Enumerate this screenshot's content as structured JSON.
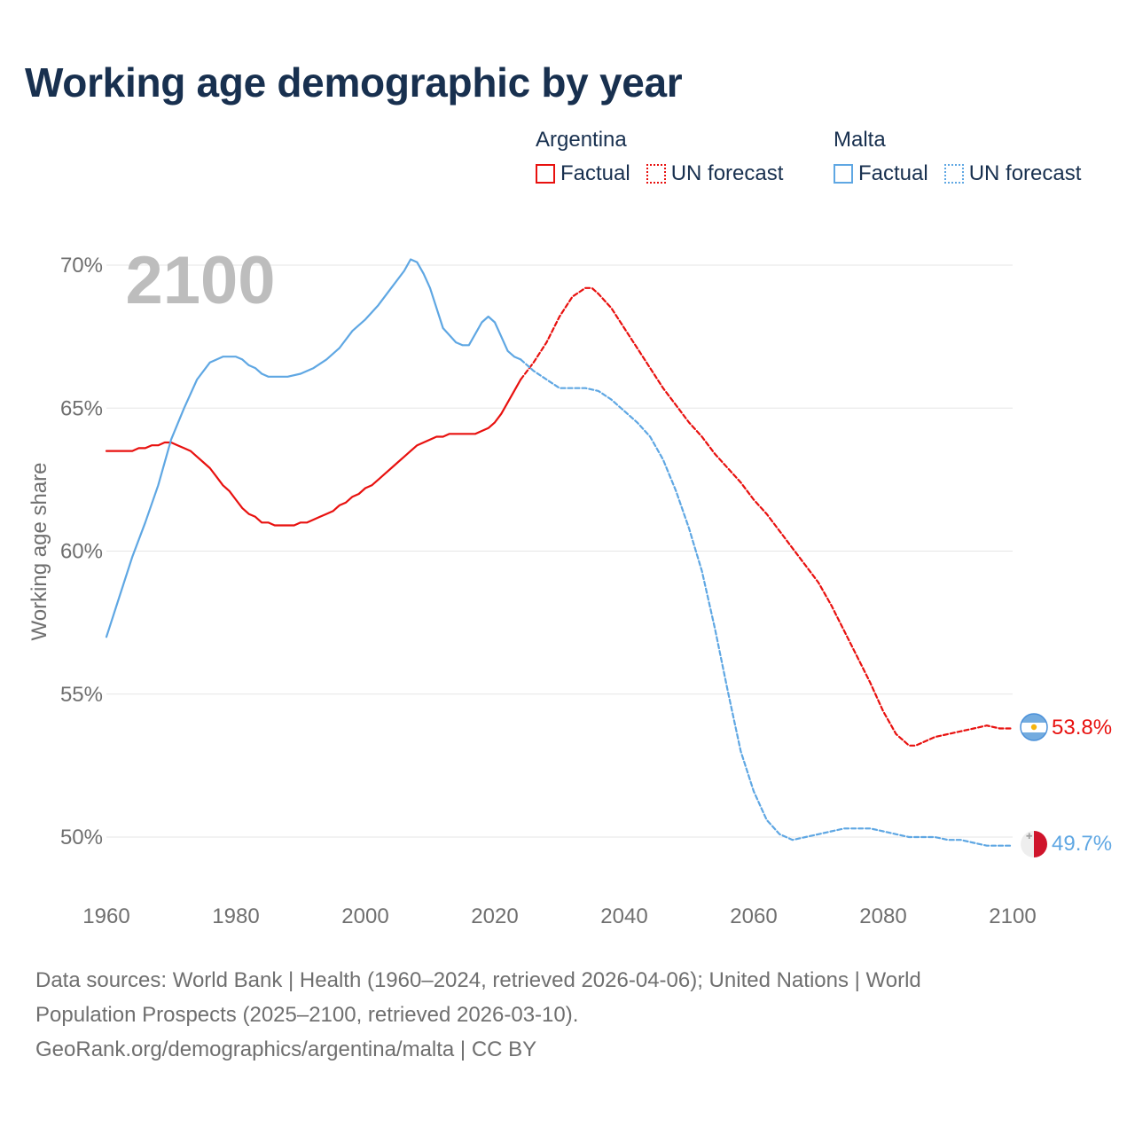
{
  "title": "Working age demographic by year",
  "legend": {
    "groups": [
      {
        "name": "Argentina",
        "color": "#e8110f",
        "factual_label": "Factual",
        "forecast_label": "UN forecast"
      },
      {
        "name": "Malta",
        "color": "#5fa7e3",
        "factual_label": "Factual",
        "forecast_label": "UN forecast"
      }
    ]
  },
  "year_overlay": "2100",
  "end_labels": {
    "argentina": "53.8%",
    "malta": "49.7%"
  },
  "footer": {
    "line1": "Data sources: World Bank | Health (1960–2024, retrieved 2026-04-06); United Nations | World",
    "line2": "Population Prospects (2025–2100, retrieved 2026-03-10).",
    "line3": "GeoRank.org/demographics/argentina/malta | CC BY"
  },
  "chart_data": {
    "type": "line",
    "title": "Working age demographic by year",
    "xlabel": "",
    "ylabel": "Working age share",
    "xlim": [
      1960,
      2100
    ],
    "ylim": [
      48,
      71
    ],
    "x_ticks": [
      1960,
      1980,
      2000,
      2020,
      2040,
      2060,
      2080,
      2100
    ],
    "y_ticks": [
      50,
      55,
      60,
      65,
      70
    ],
    "y_tick_labels": [
      "50%",
      "55%",
      "60%",
      "65%",
      "70%"
    ],
    "grid": true,
    "series": [
      {
        "name": "Argentina (Factual)",
        "country": "Argentina",
        "kind": "factual",
        "color": "#e8110f",
        "x": [
          1960,
          1962,
          1964,
          1965,
          1966,
          1967,
          1968,
          1969,
          1970,
          1971,
          1972,
          1973,
          1974,
          1975,
          1976,
          1977,
          1978,
          1979,
          1980,
          1981,
          1982,
          1983,
          1984,
          1985,
          1986,
          1987,
          1988,
          1989,
          1990,
          1991,
          1992,
          1993,
          1994,
          1995,
          1996,
          1997,
          1998,
          1999,
          2000,
          2001,
          2002,
          2003,
          2004,
          2005,
          2006,
          2007,
          2008,
          2009,
          2010,
          2011,
          2012,
          2013,
          2014,
          2015,
          2016,
          2017,
          2018,
          2019,
          2020,
          2021,
          2022,
          2023,
          2024
        ],
        "y": [
          63.5,
          63.5,
          63.5,
          63.6,
          63.6,
          63.7,
          63.7,
          63.8,
          63.8,
          63.7,
          63.6,
          63.5,
          63.3,
          63.1,
          62.9,
          62.6,
          62.3,
          62.1,
          61.8,
          61.5,
          61.3,
          61.2,
          61.0,
          61.0,
          60.9,
          60.9,
          60.9,
          60.9,
          61.0,
          61.0,
          61.1,
          61.2,
          61.3,
          61.4,
          61.6,
          61.7,
          61.9,
          62.0,
          62.2,
          62.3,
          62.5,
          62.7,
          62.9,
          63.1,
          63.3,
          63.5,
          63.7,
          63.8,
          63.9,
          64.0,
          64.0,
          64.1,
          64.1,
          64.1,
          64.1,
          64.1,
          64.2,
          64.3,
          64.5,
          64.8,
          65.2,
          65.6,
          66.0
        ]
      },
      {
        "name": "Argentina (UN forecast)",
        "country": "Argentina",
        "kind": "forecast",
        "color": "#e8110f",
        "x": [
          2024,
          2026,
          2028,
          2030,
          2032,
          2034,
          2035,
          2036,
          2038,
          2040,
          2042,
          2044,
          2046,
          2048,
          2050,
          2052,
          2054,
          2056,
          2058,
          2060,
          2062,
          2064,
          2066,
          2068,
          2070,
          2072,
          2074,
          2076,
          2078,
          2080,
          2082,
          2084,
          2085,
          2086,
          2088,
          2090,
          2092,
          2094,
          2096,
          2098,
          2100
        ],
        "y": [
          66.0,
          66.6,
          67.3,
          68.2,
          68.9,
          69.2,
          69.2,
          69.0,
          68.5,
          67.8,
          67.1,
          66.4,
          65.7,
          65.1,
          64.5,
          64.0,
          63.4,
          62.9,
          62.4,
          61.8,
          61.3,
          60.7,
          60.1,
          59.5,
          58.9,
          58.1,
          57.2,
          56.3,
          55.4,
          54.4,
          53.6,
          53.2,
          53.2,
          53.3,
          53.5,
          53.6,
          53.7,
          53.8,
          53.9,
          53.8,
          53.8
        ]
      },
      {
        "name": "Malta (Factual)",
        "country": "Malta",
        "kind": "factual",
        "color": "#5fa7e3",
        "x": [
          1960,
          1962,
          1964,
          1966,
          1968,
          1970,
          1972,
          1974,
          1976,
          1978,
          1980,
          1981,
          1982,
          1983,
          1984,
          1985,
          1986,
          1988,
          1990,
          1992,
          1994,
          1996,
          1998,
          2000,
          2002,
          2004,
          2006,
          2007,
          2008,
          2009,
          2010,
          2012,
          2014,
          2015,
          2016,
          2017,
          2018,
          2019,
          2020,
          2021,
          2022,
          2023,
          2024
        ],
        "y": [
          57.0,
          58.4,
          59.8,
          61.0,
          62.3,
          63.9,
          65.0,
          66.0,
          66.6,
          66.8,
          66.8,
          66.7,
          66.5,
          66.4,
          66.2,
          66.1,
          66.1,
          66.1,
          66.2,
          66.4,
          66.7,
          67.1,
          67.7,
          68.1,
          68.6,
          69.2,
          69.8,
          70.2,
          70.1,
          69.7,
          69.2,
          67.8,
          67.3,
          67.2,
          67.2,
          67.6,
          68.0,
          68.2,
          68.0,
          67.5,
          67.0,
          66.8,
          66.7
        ]
      },
      {
        "name": "Malta (UN forecast)",
        "country": "Malta",
        "kind": "forecast",
        "color": "#5fa7e3",
        "x": [
          2024,
          2026,
          2028,
          2030,
          2032,
          2034,
          2036,
          2038,
          2040,
          2042,
          2044,
          2046,
          2048,
          2050,
          2052,
          2054,
          2056,
          2058,
          2060,
          2062,
          2064,
          2066,
          2068,
          2070,
          2072,
          2074,
          2076,
          2078,
          2080,
          2082,
          2084,
          2086,
          2088,
          2090,
          2092,
          2094,
          2096,
          2098,
          2100
        ],
        "y": [
          66.7,
          66.3,
          66.0,
          65.7,
          65.7,
          65.7,
          65.6,
          65.3,
          64.9,
          64.5,
          64.0,
          63.2,
          62.1,
          60.8,
          59.3,
          57.3,
          55.1,
          53.0,
          51.6,
          50.6,
          50.1,
          49.9,
          50.0,
          50.1,
          50.2,
          50.3,
          50.3,
          50.3,
          50.2,
          50.1,
          50.0,
          50.0,
          50.0,
          49.9,
          49.9,
          49.8,
          49.7,
          49.7,
          49.7
        ]
      }
    ]
  }
}
